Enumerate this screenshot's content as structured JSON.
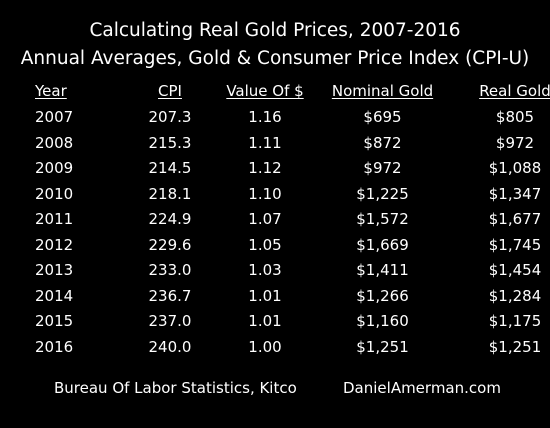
{
  "title": "Calculating Real Gold Prices, 2007-2016",
  "subtitle": "Annual Averages, Gold & Consumer Price Index (CPI-U)",
  "footer": {
    "source": "Bureau Of Labor Statistics, Kitco",
    "site": "DanielAmerman.com"
  },
  "chart_data": {
    "type": "table",
    "title": "Calculating Real Gold Prices, 2007-2016",
    "subtitle": "Annual Averages, Gold & Consumer Price Index (CPI-U)",
    "columns": [
      "Year",
      "CPI",
      "Value Of $",
      "Nominal Gold",
      "Real Gold"
    ],
    "rows": [
      [
        "2007",
        "207.3",
        "1.16",
        "$695",
        "$805"
      ],
      [
        "2008",
        "215.3",
        "1.11",
        "$872",
        "$972"
      ],
      [
        "2009",
        "214.5",
        "1.12",
        "$972",
        "$1,088"
      ],
      [
        "2010",
        "218.1",
        "1.10",
        "$1,225",
        "$1,347"
      ],
      [
        "2011",
        "224.9",
        "1.07",
        "$1,572",
        "$1,677"
      ],
      [
        "2012",
        "229.6",
        "1.05",
        "$1,669",
        "$1,745"
      ],
      [
        "2013",
        "233.0",
        "1.03",
        "$1,411",
        "$1,454"
      ],
      [
        "2014",
        "236.7",
        "1.01",
        "$1,266",
        "$1,284"
      ],
      [
        "2015",
        "237.0",
        "1.01",
        "$1,160",
        "$1,175"
      ],
      [
        "2016",
        "240.0",
        "1.00",
        "$1,251",
        "$1,251"
      ]
    ],
    "text_color": "#ffffff",
    "background_color": "#000000"
  }
}
